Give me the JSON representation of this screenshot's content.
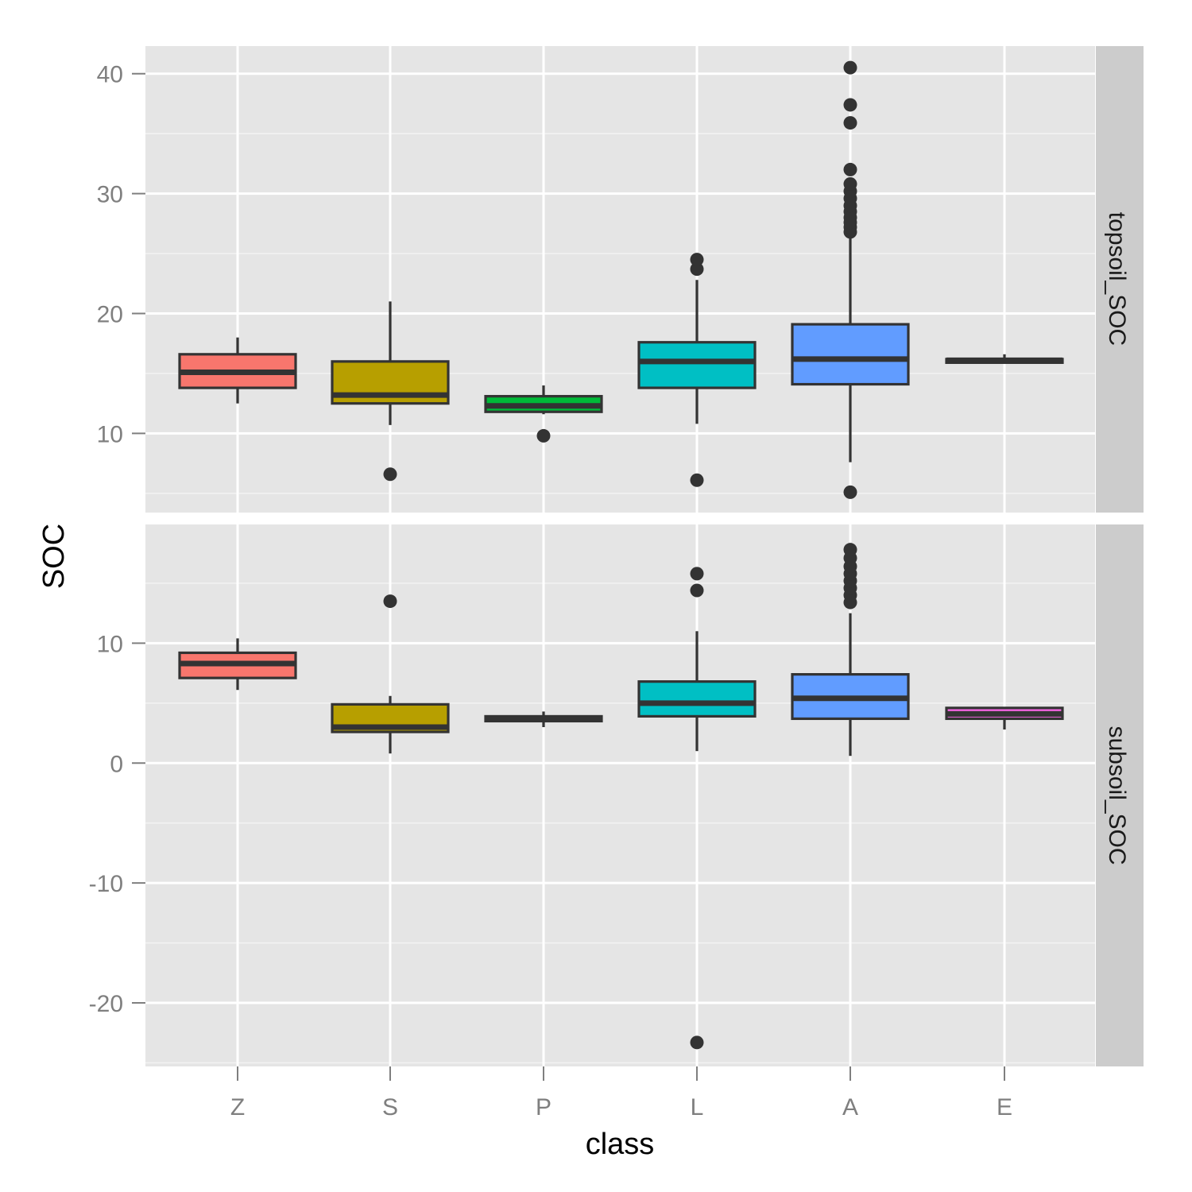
{
  "chart_data": {
    "type": "boxplot",
    "title": "",
    "xlabel": "class",
    "ylabel": "SOC",
    "categories": [
      "Z",
      "S",
      "P",
      "L",
      "A",
      "E"
    ],
    "colors": {
      "Z": "#F8766D",
      "S": "#B79F00",
      "P": "#00BA38",
      "L": "#00BFC4",
      "A": "#619CFF",
      "E": "#F564E3"
    },
    "facets": [
      {
        "name": "topsoil_SOC",
        "ylim": [
          3.4,
          42.3
        ],
        "yticks": [
          10,
          20,
          30,
          40
        ],
        "boxes": [
          {
            "class": "Z",
            "lower_whisker": 12.5,
            "q1": 13.8,
            "median": 15.1,
            "q3": 16.6,
            "upper_whisker": 18.0,
            "outliers": []
          },
          {
            "class": "S",
            "lower_whisker": 10.7,
            "q1": 12.5,
            "median": 13.2,
            "q3": 16.0,
            "upper_whisker": 21.0,
            "outliers": [
              6.6
            ]
          },
          {
            "class": "P",
            "lower_whisker": 11.6,
            "q1": 11.8,
            "median": 12.3,
            "q3": 13.1,
            "upper_whisker": 14.0,
            "outliers": [
              9.8
            ]
          },
          {
            "class": "L",
            "lower_whisker": 10.8,
            "q1": 13.8,
            "median": 16.0,
            "q3": 17.6,
            "upper_whisker": 22.8,
            "outliers": [
              23.7,
              24.5,
              6.1
            ]
          },
          {
            "class": "A",
            "lower_whisker": 7.6,
            "q1": 14.1,
            "median": 16.2,
            "q3": 19.1,
            "upper_whisker": 26.5,
            "outliers": [
              26.8,
              27.2,
              27.6,
              28.0,
              28.5,
              29.0,
              29.6,
              30.2,
              30.8,
              32.0,
              35.9,
              37.4,
              40.5,
              5.1
            ]
          },
          {
            "class": "E",
            "lower_whisker": 15.9,
            "q1": 15.9,
            "median": 16.1,
            "q3": 16.2,
            "upper_whisker": 16.6,
            "outliers": []
          }
        ]
      },
      {
        "name": "subsoil_SOC",
        "ylim": [
          -25.3,
          19.9
        ],
        "yticks": [
          -20,
          -10,
          0,
          10
        ],
        "boxes": [
          {
            "class": "Z",
            "lower_whisker": 6.1,
            "q1": 7.1,
            "median": 8.3,
            "q3": 9.2,
            "upper_whisker": 10.4,
            "outliers": []
          },
          {
            "class": "S",
            "lower_whisker": 0.8,
            "q1": 2.6,
            "median": 3.0,
            "q3": 4.9,
            "upper_whisker": 5.6,
            "outliers": [
              13.5
            ]
          },
          {
            "class": "P",
            "lower_whisker": 3.0,
            "q1": 3.5,
            "median": 3.7,
            "q3": 3.9,
            "upper_whisker": 4.3,
            "outliers": []
          },
          {
            "class": "L",
            "lower_whisker": 1.0,
            "q1": 3.9,
            "median": 5.0,
            "q3": 6.8,
            "upper_whisker": 11.0,
            "outliers": [
              14.4,
              15.8,
              -23.3
            ]
          },
          {
            "class": "A",
            "lower_whisker": 0.6,
            "q1": 3.7,
            "median": 5.4,
            "q3": 7.4,
            "upper_whisker": 12.5,
            "outliers": [
              13.4,
              14.0,
              14.6,
              15.2,
              15.8,
              16.4,
              17.1,
              17.8
            ]
          },
          {
            "class": "E",
            "lower_whisker": 2.8,
            "q1": 3.7,
            "median": 4.1,
            "q3": 4.6,
            "upper_whisker": 4.6,
            "outliers": []
          }
        ]
      }
    ],
    "grid": true,
    "legend": "none"
  },
  "axes": {
    "x_title": "class",
    "y_title": "SOC",
    "x_ticks": [
      "Z",
      "S",
      "P",
      "L",
      "A",
      "E"
    ],
    "top_y_ticks": [
      "10",
      "20",
      "30",
      "40"
    ],
    "bottom_y_ticks": [
      "-20",
      "-10",
      "0",
      "10"
    ]
  },
  "strips": {
    "top": "topsoil_SOC",
    "bottom": "subsoil_SOC"
  }
}
